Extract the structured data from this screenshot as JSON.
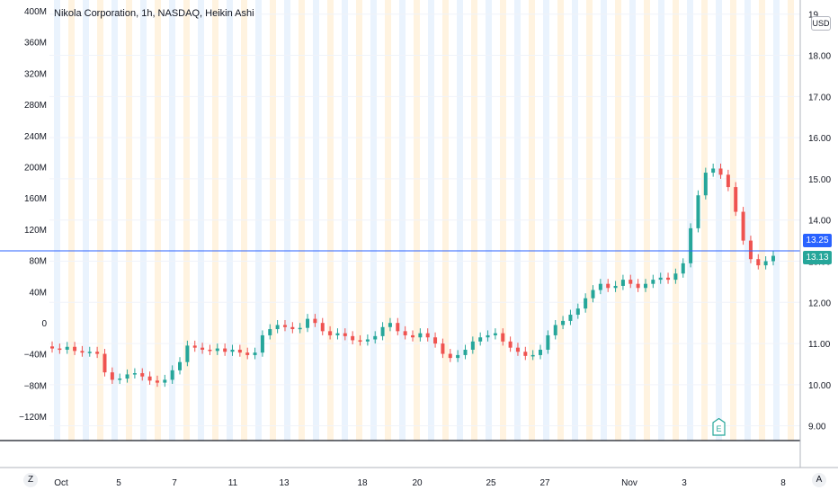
{
  "legend": {
    "symbol_text": "Nikola Corporation, 1h, NASDAQ, Heikin Ashi"
  },
  "currency_badge": "USD",
  "price_axis": {
    "ticks": [
      "9.00",
      "10.00",
      "11.00",
      "12.00",
      "13.00",
      "14.00",
      "15.00",
      "16.00",
      "17.00",
      "18.00",
      "19"
    ],
    "last_price": "13.13",
    "crosshair_price": "13.25"
  },
  "volume_axis": {
    "ticks": [
      "400M",
      "360M",
      "320M",
      "280M",
      "240M",
      "200M",
      "160M",
      "120M",
      "80M",
      "40M",
      "0",
      "−40M",
      "−80M",
      "−120M"
    ]
  },
  "time_axis": {
    "ticks": [
      "Oct",
      "5",
      "7",
      "11",
      "13",
      "18",
      "20",
      "25",
      "27",
      "Nov",
      "3",
      "8"
    ]
  },
  "buttons": {
    "goto_date": "Z",
    "auto_scale": "A"
  },
  "earnings_marker": "E",
  "colors": {
    "up": "#26a69a",
    "down": "#ef5350",
    "line": "#2962ff",
    "grid": "#f0f3fa",
    "session_bg": "#fff3e0"
  },
  "chart_data": {
    "type": "candlestick",
    "title": "Nikola Corporation, 1h, NASDAQ, Heikin Ashi",
    "y_range": [
      8.6,
      19.3
    ],
    "series": [
      {
        "close": 10.88,
        "dir": "down"
      },
      {
        "close": 10.85,
        "dir": "down"
      },
      {
        "close": 10.92,
        "dir": "up"
      },
      {
        "close": 10.82,
        "dir": "down"
      },
      {
        "close": 10.78,
        "dir": "down"
      },
      {
        "close": 10.8,
        "dir": "up"
      },
      {
        "close": 10.75,
        "dir": "down"
      },
      {
        "close": 10.3,
        "dir": "down"
      },
      {
        "close": 10.12,
        "dir": "down"
      },
      {
        "close": 10.15,
        "dir": "up"
      },
      {
        "close": 10.25,
        "dir": "up"
      },
      {
        "close": 10.28,
        "dir": "up"
      },
      {
        "close": 10.2,
        "dir": "down"
      },
      {
        "close": 10.1,
        "dir": "down"
      },
      {
        "close": 10.05,
        "dir": "down"
      },
      {
        "close": 10.12,
        "dir": "up"
      },
      {
        "close": 10.35,
        "dir": "up"
      },
      {
        "close": 10.55,
        "dir": "up"
      },
      {
        "close": 10.95,
        "dir": "up"
      },
      {
        "close": 10.9,
        "dir": "down"
      },
      {
        "close": 10.85,
        "dir": "down"
      },
      {
        "close": 10.82,
        "dir": "down"
      },
      {
        "close": 10.88,
        "dir": "up"
      },
      {
        "close": 10.8,
        "dir": "down"
      },
      {
        "close": 10.85,
        "dir": "up"
      },
      {
        "close": 10.78,
        "dir": "down"
      },
      {
        "close": 10.72,
        "dir": "down"
      },
      {
        "close": 10.78,
        "dir": "up"
      },
      {
        "close": 11.2,
        "dir": "up"
      },
      {
        "close": 11.35,
        "dir": "up"
      },
      {
        "close": 11.45,
        "dir": "up"
      },
      {
        "close": 11.4,
        "dir": "down"
      },
      {
        "close": 11.35,
        "dir": "down"
      },
      {
        "close": 11.38,
        "dir": "up"
      },
      {
        "close": 11.6,
        "dir": "up"
      },
      {
        "close": 11.5,
        "dir": "down"
      },
      {
        "close": 11.3,
        "dir": "down"
      },
      {
        "close": 11.2,
        "dir": "down"
      },
      {
        "close": 11.25,
        "dir": "up"
      },
      {
        "close": 11.18,
        "dir": "down"
      },
      {
        "close": 11.08,
        "dir": "down"
      },
      {
        "close": 11.05,
        "dir": "down"
      },
      {
        "close": 11.1,
        "dir": "up"
      },
      {
        "close": 11.18,
        "dir": "up"
      },
      {
        "close": 11.4,
        "dir": "up"
      },
      {
        "close": 11.5,
        "dir": "up"
      },
      {
        "close": 11.3,
        "dir": "down"
      },
      {
        "close": 11.2,
        "dir": "down"
      },
      {
        "close": 11.15,
        "dir": "down"
      },
      {
        "close": 11.25,
        "dir": "up"
      },
      {
        "close": 11.15,
        "dir": "down"
      },
      {
        "close": 11.0,
        "dir": "down"
      },
      {
        "close": 10.75,
        "dir": "down"
      },
      {
        "close": 10.65,
        "dir": "down"
      },
      {
        "close": 10.72,
        "dir": "up"
      },
      {
        "close": 10.85,
        "dir": "up"
      },
      {
        "close": 11.05,
        "dir": "up"
      },
      {
        "close": 11.15,
        "dir": "up"
      },
      {
        "close": 11.2,
        "dir": "up"
      },
      {
        "close": 11.25,
        "dir": "up"
      },
      {
        "close": 11.05,
        "dir": "down"
      },
      {
        "close": 10.9,
        "dir": "down"
      },
      {
        "close": 10.8,
        "dir": "down"
      },
      {
        "close": 10.7,
        "dir": "down"
      },
      {
        "close": 10.72,
        "dir": "up"
      },
      {
        "close": 10.85,
        "dir": "up"
      },
      {
        "close": 11.2,
        "dir": "up"
      },
      {
        "close": 11.45,
        "dir": "up"
      },
      {
        "close": 11.55,
        "dir": "up"
      },
      {
        "close": 11.7,
        "dir": "up"
      },
      {
        "close": 11.85,
        "dir": "up"
      },
      {
        "close": 12.1,
        "dir": "up"
      },
      {
        "close": 12.3,
        "dir": "up"
      },
      {
        "close": 12.45,
        "dir": "up"
      },
      {
        "close": 12.35,
        "dir": "down"
      },
      {
        "close": 12.4,
        "dir": "up"
      },
      {
        "close": 12.55,
        "dir": "up"
      },
      {
        "close": 12.45,
        "dir": "down"
      },
      {
        "close": 12.35,
        "dir": "down"
      },
      {
        "close": 12.45,
        "dir": "up"
      },
      {
        "close": 12.55,
        "dir": "up"
      },
      {
        "close": 12.6,
        "dir": "up"
      },
      {
        "close": 12.55,
        "dir": "down"
      },
      {
        "close": 12.7,
        "dir": "up"
      },
      {
        "close": 12.95,
        "dir": "up"
      },
      {
        "close": 13.8,
        "dir": "up"
      },
      {
        "close": 14.6,
        "dir": "up"
      },
      {
        "close": 15.15,
        "dir": "up"
      },
      {
        "close": 15.25,
        "dir": "up"
      },
      {
        "close": 15.1,
        "dir": "down"
      },
      {
        "close": 14.8,
        "dir": "down"
      },
      {
        "close": 14.2,
        "dir": "down"
      },
      {
        "close": 13.5,
        "dir": "down"
      },
      {
        "close": 13.05,
        "dir": "down"
      },
      {
        "close": 12.9,
        "dir": "down"
      },
      {
        "close": 13.0,
        "dir": "up"
      },
      {
        "close": 13.13,
        "dir": "up"
      }
    ]
  }
}
